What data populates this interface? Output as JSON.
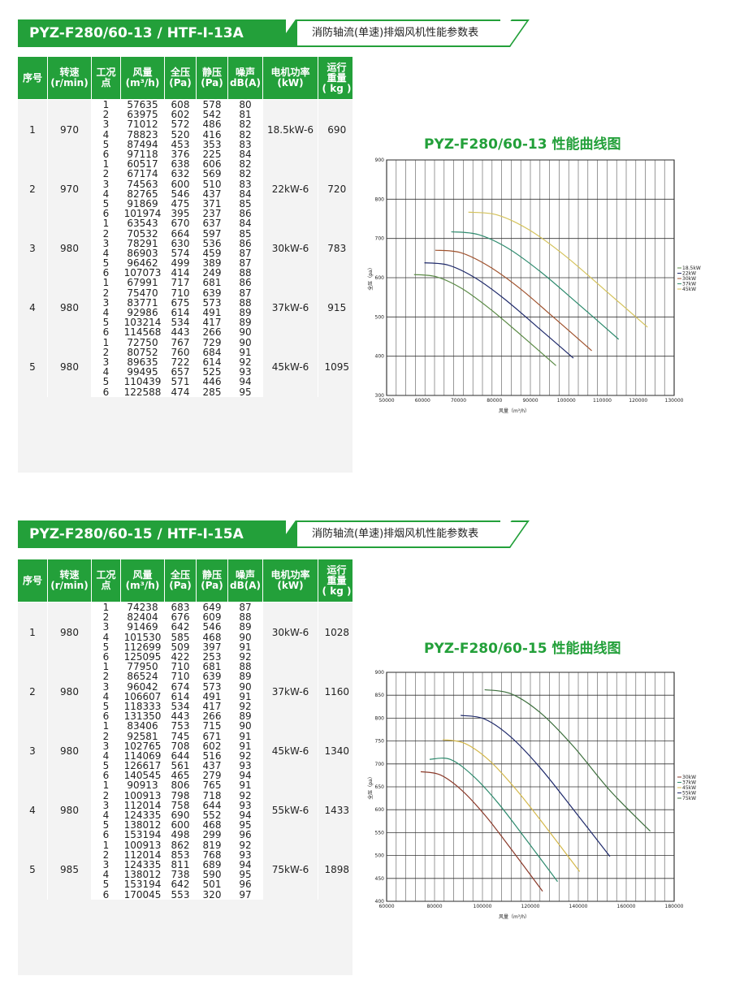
{
  "sections": [
    {
      "model_title": "PYZ-F280/60-13  /  HTF-I-13A",
      "subtitle": "消防轴流(单速)排烟风机性能参数表",
      "headers": [
        "序号",
        "转速\n(r/min)",
        "工况\n点",
        "风量\n(m³/h)",
        "全压\n(Pa)",
        "静压\n(Pa)",
        "噪声\ndB(A)",
        "电机功率\n(kW)",
        "运行\n重量\n( kg )"
      ],
      "groups": [
        {
          "no": "1",
          "speed": "970",
          "power": "18.5kW-6",
          "weight": "690",
          "rows": [
            [
              "1",
              "57635",
              "608",
              "578",
              "80"
            ],
            [
              "2",
              "63975",
              "602",
              "542",
              "81"
            ],
            [
              "3",
              "71012",
              "572",
              "486",
              "82"
            ],
            [
              "4",
              "78823",
              "520",
              "416",
              "82"
            ],
            [
              "5",
              "87494",
              "453",
              "353",
              "83"
            ],
            [
              "6",
              "97118",
              "376",
              "225",
              "84"
            ]
          ]
        },
        {
          "no": "2",
          "speed": "970",
          "power": "22kW-6",
          "weight": "720",
          "rows": [
            [
              "1",
              "60517",
              "638",
              "606",
              "82"
            ],
            [
              "2",
              "67174",
              "632",
              "569",
              "82"
            ],
            [
              "3",
              "74563",
              "600",
              "510",
              "83"
            ],
            [
              "4",
              "82765",
              "546",
              "437",
              "84"
            ],
            [
              "5",
              "91869",
              "475",
              "371",
              "85"
            ],
            [
              "6",
              "101974",
              "395",
              "237",
              "86"
            ]
          ]
        },
        {
          "no": "3",
          "speed": "980",
          "power": "30kW-6",
          "weight": "783",
          "rows": [
            [
              "1",
              "63543",
              "670",
              "637",
              "84"
            ],
            [
              "2",
              "70532",
              "664",
              "597",
              "85"
            ],
            [
              "3",
              "78291",
              "630",
              "536",
              "86"
            ],
            [
              "4",
              "86903",
              "574",
              "459",
              "87"
            ],
            [
              "5",
              "96462",
              "499",
              "389",
              "87"
            ],
            [
              "6",
              "107073",
              "414",
              "249",
              "88"
            ]
          ]
        },
        {
          "no": "4",
          "speed": "980",
          "power": "37kW-6",
          "weight": "915",
          "rows": [
            [
              "1",
              "67991",
              "717",
              "681",
              "86"
            ],
            [
              "2",
              "75470",
              "710",
              "639",
              "87"
            ],
            [
              "3",
              "83771",
              "675",
              "573",
              "88"
            ],
            [
              "4",
              "92986",
              "614",
              "491",
              "89"
            ],
            [
              "5",
              "103214",
              "534",
              "417",
              "89"
            ],
            [
              "6",
              "114568",
              "443",
              "266",
              "90"
            ]
          ]
        },
        {
          "no": "5",
          "speed": "980",
          "power": "45kW-6",
          "weight": "1095",
          "rows": [
            [
              "1",
              "72750",
              "767",
              "729",
              "90"
            ],
            [
              "2",
              "80752",
              "760",
              "684",
              "91"
            ],
            [
              "3",
              "89635",
              "722",
              "614",
              "92"
            ],
            [
              "4",
              "99495",
              "657",
              "525",
              "93"
            ],
            [
              "5",
              "110439",
              "571",
              "446",
              "94"
            ],
            [
              "6",
              "122588",
              "474",
              "285",
              "95"
            ]
          ]
        }
      ],
      "chart_data": {
        "type": "line",
        "title": "PYZ-F280/60-13 性能曲线图",
        "xlabel": "风量（m³/h）",
        "ylabel": "全压（pa）",
        "xlim": [
          50000,
          130000
        ],
        "ylim": [
          300,
          900
        ],
        "xticks": [
          "50000",
          "60000",
          "70000",
          "80000",
          "90000",
          "100000",
          "110000",
          "120000",
          "130000"
        ],
        "yticks": [
          "300",
          "400",
          "500",
          "600",
          "700",
          "800",
          "900"
        ],
        "grid": true,
        "legend_position": "right",
        "series": [
          {
            "name": "18.5kW",
            "color": "#5a8a45",
            "x": [
              57635,
              63975,
              71012,
              78823,
              87494,
              97118
            ],
            "y": [
              608,
              602,
              572,
              520,
              453,
              376
            ]
          },
          {
            "name": "22kW",
            "color": "#1f2a6b",
            "x": [
              60517,
              67174,
              74563,
              82765,
              91869,
              101974
            ],
            "y": [
              638,
              632,
              600,
              546,
              475,
              395
            ]
          },
          {
            "name": "30kW",
            "color": "#a0522d",
            "x": [
              63543,
              70532,
              78291,
              86903,
              96462,
              107073
            ],
            "y": [
              670,
              664,
              630,
              574,
              499,
              414
            ]
          },
          {
            "name": "37kW",
            "color": "#2e8b6e",
            "x": [
              67991,
              75470,
              83771,
              92986,
              103214,
              114568
            ],
            "y": [
              717,
              710,
              675,
              614,
              534,
              443
            ]
          },
          {
            "name": "45kW",
            "color": "#d4c25a",
            "x": [
              72750,
              80752,
              89635,
              99495,
              110439,
              122588
            ],
            "y": [
              767,
              760,
              722,
              657,
              571,
              474
            ]
          }
        ]
      }
    },
    {
      "model_title": "PYZ-F280/60-15 /  HTF-I-15A",
      "subtitle": "消防轴流(单速)排烟风机性能参数表",
      "headers": [
        "序号",
        "转速\n(r/min)",
        "工况\n点",
        "风量\n(m³/h)",
        "全压\n(Pa)",
        "静压\n(Pa)",
        "噪声\ndB(A)",
        "电机功率\n(kW)",
        "运行\n重量\n( kg )"
      ],
      "groups": [
        {
          "no": "1",
          "speed": "980",
          "power": "30kW-6",
          "weight": "1028",
          "rows": [
            [
              "1",
              "74238",
              "683",
              "649",
              "87"
            ],
            [
              "2",
              "82404",
              "676",
              "609",
              "88"
            ],
            [
              "3",
              "91469",
              "642",
              "546",
              "89"
            ],
            [
              "4",
              "101530",
              "585",
              "468",
              "90"
            ],
            [
              "5",
              "112699",
              "509",
              "397",
              "91"
            ],
            [
              "6",
              "125095",
              "422",
              "253",
              "92"
            ]
          ]
        },
        {
          "no": "2",
          "speed": "980",
          "power": "37kW-6",
          "weight": "1160",
          "rows": [
            [
              "1",
              "77950",
              "710",
              "681",
              "88"
            ],
            [
              "2",
              "86524",
              "710",
              "639",
              "89"
            ],
            [
              "3",
              "96042",
              "674",
              "573",
              "90"
            ],
            [
              "4",
              "106607",
              "614",
              "491",
              "91"
            ],
            [
              "5",
              "118333",
              "534",
              "417",
              "92"
            ],
            [
              "6",
              "131350",
              "443",
              "266",
              "89"
            ]
          ]
        },
        {
          "no": "3",
          "speed": "980",
          "power": "45kW-6",
          "weight": "1340",
          "rows": [
            [
              "1",
              "83406",
              "753",
              "715",
              "90"
            ],
            [
              "2",
              "92581",
              "745",
              "671",
              "91"
            ],
            [
              "3",
              "102765",
              "708",
              "602",
              "91"
            ],
            [
              "4",
              "114069",
              "644",
              "516",
              "92"
            ],
            [
              "5",
              "126617",
              "561",
              "437",
              "93"
            ],
            [
              "6",
              "140545",
              "465",
              "279",
              "94"
            ]
          ]
        },
        {
          "no": "4",
          "speed": "980",
          "power": "55kW-6",
          "weight": "1433",
          "rows": [
            [
              "1",
              "90913",
              "806",
              "765",
              "91"
            ],
            [
              "2",
              "100913",
              "798",
              "718",
              "92"
            ],
            [
              "3",
              "112014",
              "758",
              "644",
              "93"
            ],
            [
              "4",
              "124335",
              "690",
              "552",
              "94"
            ],
            [
              "5",
              "138012",
              "600",
              "468",
              "95"
            ],
            [
              "6",
              "153194",
              "498",
              "299",
              "96"
            ]
          ]
        },
        {
          "no": "5",
          "speed": "985",
          "power": "75kW-6",
          "weight": "1898",
          "rows": [
            [
              "1",
              "100913",
              "862",
              "819",
              "92"
            ],
            [
              "2",
              "112014",
              "853",
              "768",
              "93"
            ],
            [
              "3",
              "124335",
              "811",
              "689",
              "94"
            ],
            [
              "4",
              "138012",
              "738",
              "590",
              "95"
            ],
            [
              "5",
              "153194",
              "642",
              "501",
              "96"
            ],
            [
              "6",
              "170045",
              "553",
              "320",
              "97"
            ]
          ]
        }
      ],
      "chart_data": {
        "type": "line",
        "title": "PYZ-F280/60-15 性能曲线图",
        "xlabel": "风量（m³/h）",
        "ylabel": "全压（pa）",
        "xlim": [
          60000,
          180000
        ],
        "ylim": [
          400,
          900
        ],
        "xticks": [
          "60000",
          "80000",
          "100000",
          "120000",
          "140000",
          "160000",
          "180000"
        ],
        "yticks": [
          "400",
          "450",
          "500",
          "550",
          "600",
          "650",
          "700",
          "750",
          "800",
          "850",
          "900"
        ],
        "grid": true,
        "legend_position": "right",
        "series": [
          {
            "name": "30kW",
            "color": "#8b3a2a",
            "x": [
              74238,
              82404,
              91469,
              101530,
              112699,
              125095
            ],
            "y": [
              683,
              676,
              642,
              585,
              509,
              422
            ]
          },
          {
            "name": "37kW",
            "color": "#2e8b6e",
            "x": [
              77950,
              86524,
              96042,
              106607,
              118333,
              131350
            ],
            "y": [
              710,
              710,
              674,
              614,
              534,
              443
            ]
          },
          {
            "name": "45kW",
            "color": "#d4b84a",
            "x": [
              83406,
              92581,
              102765,
              114069,
              126617,
              140545
            ],
            "y": [
              753,
              745,
              708,
              644,
              561,
              465
            ]
          },
          {
            "name": "55kW",
            "color": "#1f2a6b",
            "x": [
              90913,
              100913,
              112014,
              124335,
              138012,
              153194
            ],
            "y": [
              806,
              798,
              758,
              690,
              600,
              498
            ]
          },
          {
            "name": "75kW",
            "color": "#3c6e3c",
            "x": [
              100913,
              112014,
              124335,
              138012,
              153194,
              170045
            ],
            "y": [
              862,
              853,
              811,
              738,
              642,
              553
            ]
          }
        ]
      }
    }
  ]
}
